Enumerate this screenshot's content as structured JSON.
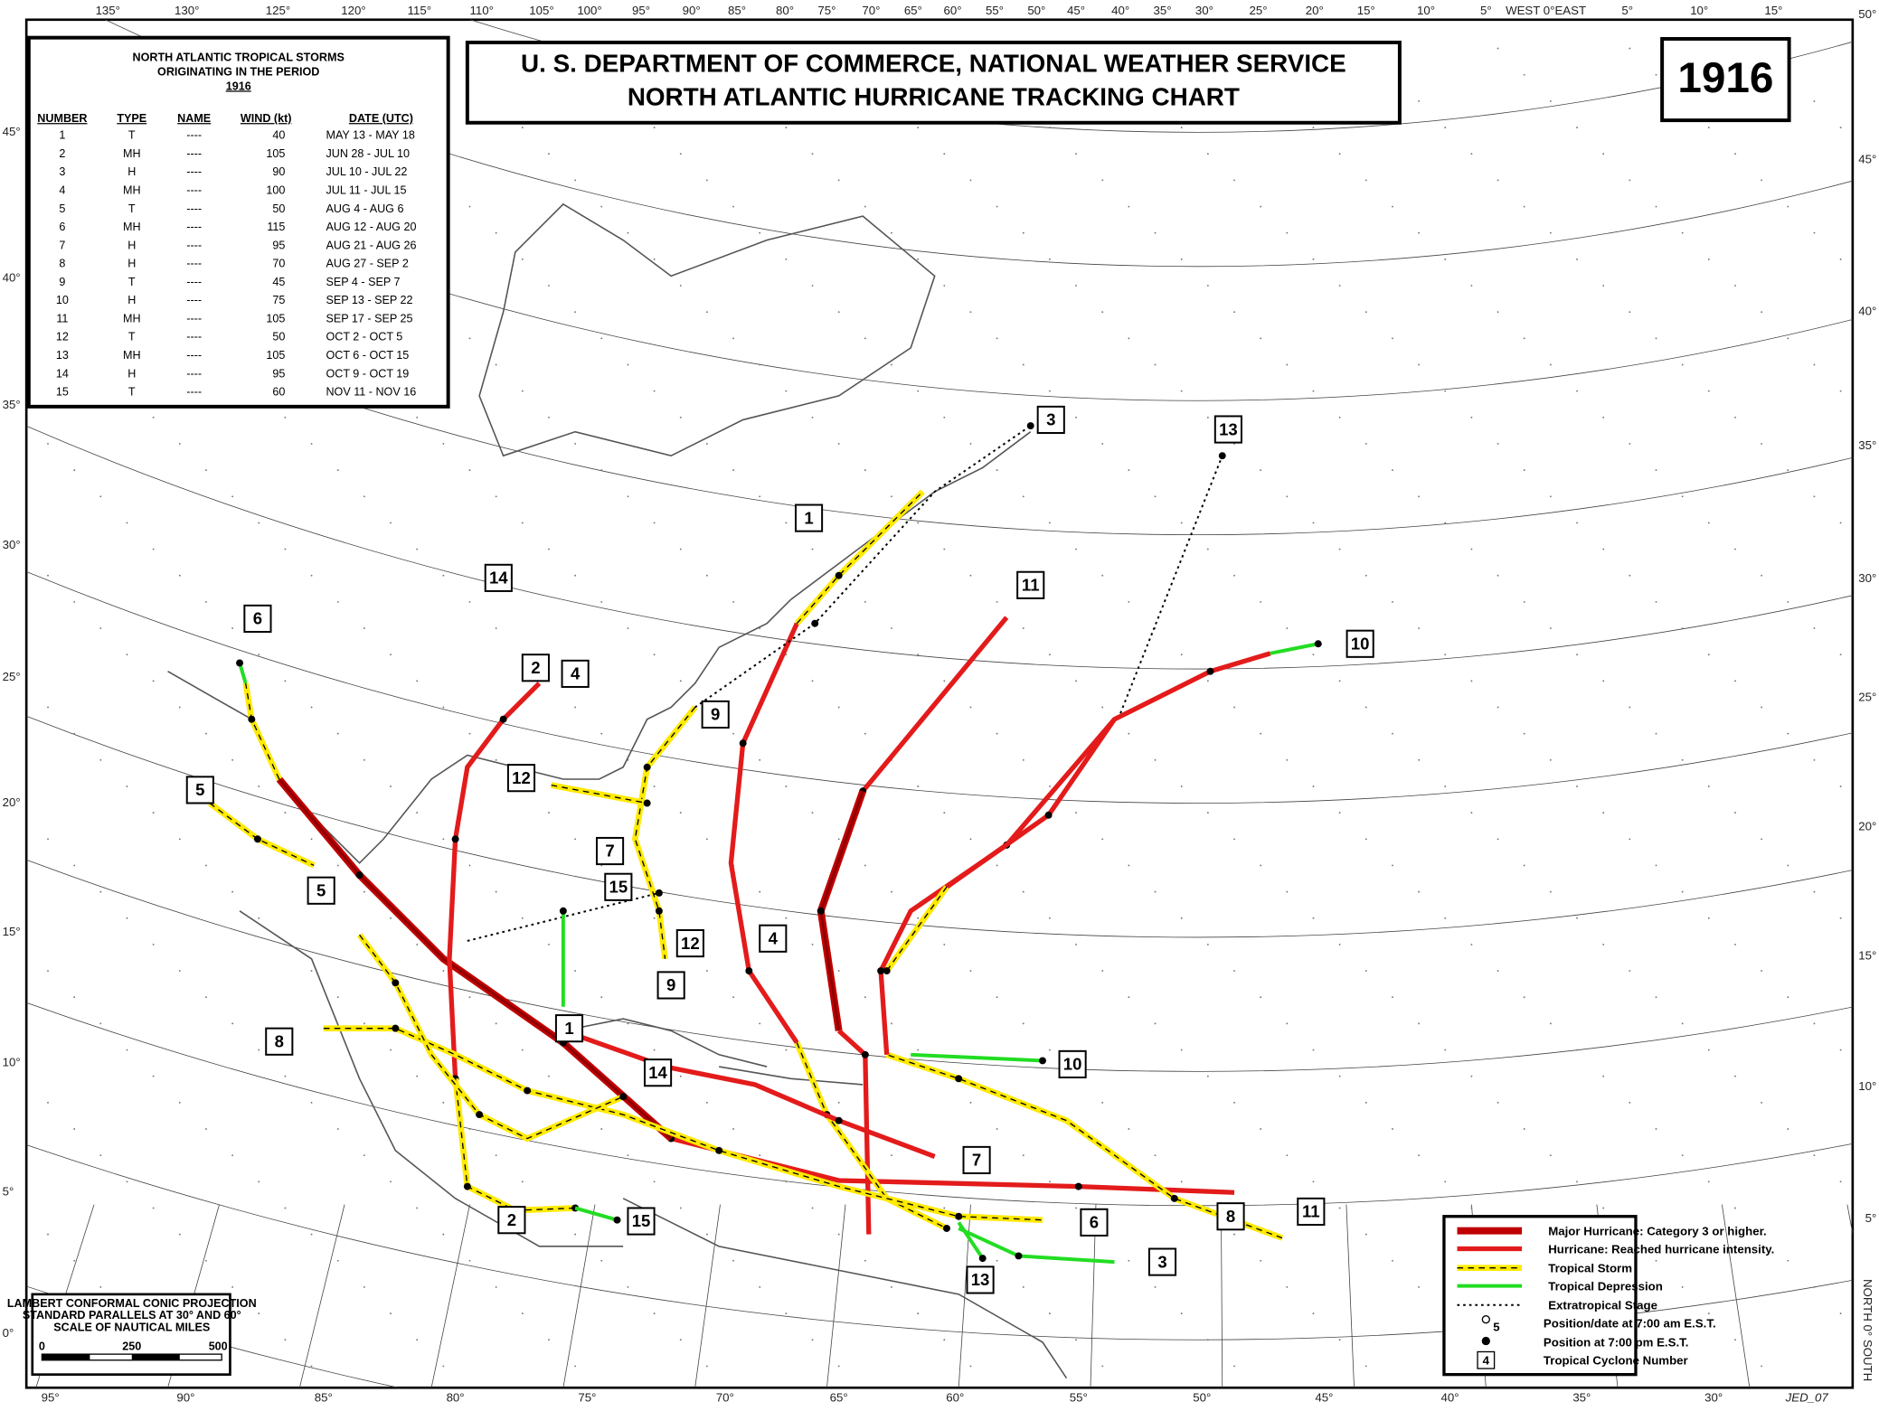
{
  "title": [
    "U. S. DEPARTMENT OF COMMERCE, NATIONAL WEATHER SERVICE",
    "NORTH ATLANTIC HURRICANE TRACKING CHART"
  ],
  "year": "1916",
  "table": {
    "title": [
      "NORTH ATLANTIC TROPICAL STORMS",
      "ORIGINATING IN THE PERIOD",
      "1916"
    ],
    "headers": [
      "NUMBER",
      "TYPE",
      "NAME",
      "WIND (kt)",
      "DATE (UTC)"
    ],
    "rows": [
      [
        "1",
        "T",
        "----",
        "40",
        "MAY 13 - MAY 18"
      ],
      [
        "2",
        "MH",
        "----",
        "105",
        "JUN 28 - JUL 10"
      ],
      [
        "3",
        "H",
        "----",
        "90",
        "JUL 10 - JUL 22"
      ],
      [
        "4",
        "MH",
        "----",
        "100",
        "JUL 11 - JUL 15"
      ],
      [
        "5",
        "T",
        "----",
        "50",
        "AUG  4 - AUG  6"
      ],
      [
        "6",
        "MH",
        "----",
        "115",
        "AUG 12 - AUG 20"
      ],
      [
        "7",
        "H",
        "----",
        "95",
        "AUG 21 - AUG 26"
      ],
      [
        "8",
        "H",
        "----",
        "70",
        "AUG 27 - SEP  2"
      ],
      [
        "9",
        "T",
        "----",
        "45",
        "SEP  4 - SEP  7"
      ],
      [
        "10",
        "H",
        "----",
        "75",
        "SEP 13 - SEP 22"
      ],
      [
        "11",
        "MH",
        "----",
        "105",
        "SEP 17 - SEP 25"
      ],
      [
        "12",
        "T",
        "----",
        "50",
        "OCT  2 - OCT  5"
      ],
      [
        "13",
        "MH",
        "----",
        "105",
        "OCT  6 - OCT 15"
      ],
      [
        "14",
        "H",
        "----",
        "95",
        "OCT  9 - OCT 19"
      ],
      [
        "15",
        "T",
        "----",
        "60",
        "NOV 11 - NOV 16"
      ]
    ]
  },
  "legend": [
    "Major Hurricane: Category 3 or higher.",
    "Hurricane: Reached hurricane intensity.",
    "Tropical Storm",
    "Tropical Depression",
    "Extratropical Stage",
    "Position/date at 7:00 am E.S.T.",
    "Position at 7:00 pm E.S.T.",
    "Tropical Cyclone Number"
  ],
  "legend_symbols": [
    "5",
    "4"
  ],
  "projection": [
    "LAMBERT CONFORMAL CONIC PROJECTION",
    "STANDARD PARALLELS AT 30° AND 60°",
    "SCALE OF NAUTICAL MILES"
  ],
  "scale_labels": [
    "0",
    "250",
    "500"
  ],
  "top_labels": [
    "135°",
    "130°",
    "125°",
    "120°",
    "115°",
    "110°",
    "105°",
    "100°",
    "95°",
    "90°",
    "85°",
    "80°",
    "75°",
    "70°",
    "65°",
    "60°",
    "55°",
    "50°",
    "45°",
    "40°",
    "35°",
    "30°",
    "25°",
    "20°",
    "15°",
    "10°",
    "5°",
    "WEST 0°EAST",
    "5°",
    "10°",
    "15°"
  ],
  "bottom_labels": [
    "95°",
    "90°",
    "85°",
    "80°",
    "75°",
    "70°",
    "65°",
    "60°",
    "55°",
    "50°",
    "45°",
    "40°",
    "35°",
    "30°"
  ],
  "left_labels": [
    "45°",
    "40°",
    "35°",
    "30°",
    "25°",
    "20°",
    "15°",
    "10°",
    "5°",
    "0°"
  ],
  "right_labels": [
    "50°",
    "45°",
    "40°",
    "35°",
    "30°",
    "25°",
    "20°",
    "15°",
    "10°",
    "5°"
  ],
  "storm_labels": [
    "1",
    "1",
    "2",
    "2",
    "3",
    "3",
    "4",
    "4",
    "5",
    "5",
    "6",
    "6",
    "7",
    "7",
    "8",
    "8",
    "9",
    "9",
    "10",
    "10",
    "11",
    "11",
    "12",
    "12",
    "13",
    "13",
    "14",
    "14",
    "15",
    "15"
  ],
  "credit": "JED_07",
  "side_label": "NORTH 0° SOUTH"
}
